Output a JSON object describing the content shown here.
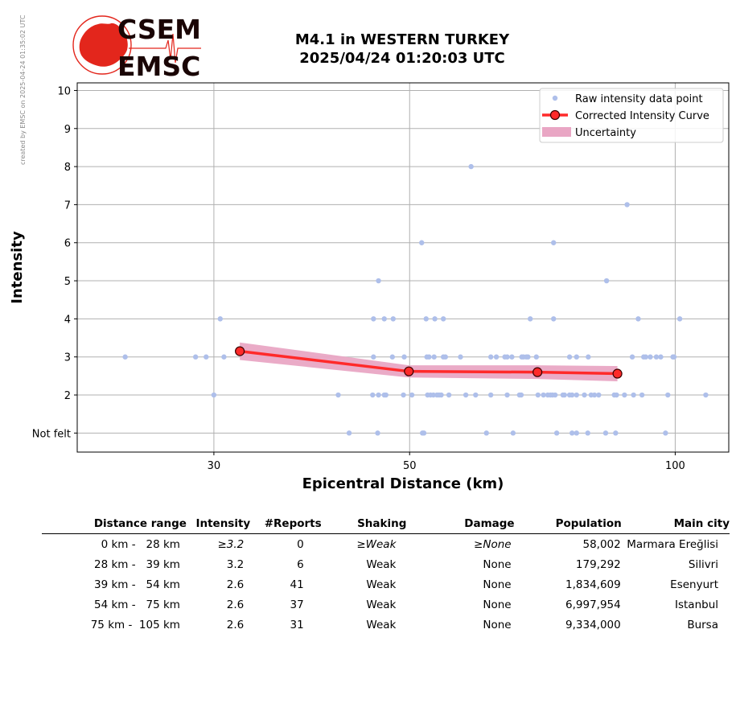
{
  "watermark": "created by EMSC on 2025-04-24 01:35:02 UTC",
  "logo": {
    "line1": "CSEM",
    "line2": "EMSC"
  },
  "title": {
    "line1": "M4.1 in WESTERN TURKEY",
    "line2": "2025/04/24 01:20:03 UTC"
  },
  "colors": {
    "raw": "#aebfea",
    "curve": "#ff2a2a",
    "marker_edge": "#3a0000",
    "uncertainty": "#e9a6c4",
    "logo_red": "#e3261c",
    "logo_text": "#1a0505"
  },
  "chart_data": {
    "type": "scatter",
    "xlabel": "Epicentral Distance (km)",
    "ylabel": "Intensity",
    "x_scale": "log",
    "xlim": [
      21,
      115
    ],
    "ylim": [
      0.5,
      10.2
    ],
    "x_ticks": [
      30,
      50,
      100
    ],
    "y_ticks": [
      {
        "value": 1,
        "label": "Not felt"
      },
      {
        "value": 2,
        "label": "2"
      },
      {
        "value": 3,
        "label": "3"
      },
      {
        "value": 4,
        "label": "4"
      },
      {
        "value": 5,
        "label": "5"
      },
      {
        "value": 6,
        "label": "6"
      },
      {
        "value": 7,
        "label": "7"
      },
      {
        "value": 8,
        "label": "8"
      },
      {
        "value": 9,
        "label": "9"
      },
      {
        "value": 10,
        "label": "10"
      }
    ],
    "grid": true,
    "legend_position": "top-right",
    "legend": [
      "Raw intensity data point",
      "Corrected Intensity Curve",
      "Uncertainty"
    ],
    "raw_points": [
      [
        23.8,
        3
      ],
      [
        28.6,
        3
      ],
      [
        29.4,
        3
      ],
      [
        30.0,
        2
      ],
      [
        30.5,
        4
      ],
      [
        30.8,
        3
      ],
      [
        41.5,
        2
      ],
      [
        42.7,
        1
      ],
      [
        45.4,
        2
      ],
      [
        45.5,
        3
      ],
      [
        45.5,
        4
      ],
      [
        46.1,
        5
      ],
      [
        46.1,
        2
      ],
      [
        46.0,
        1
      ],
      [
        46.8,
        2
      ],
      [
        47.0,
        2
      ],
      [
        46.8,
        4
      ],
      [
        47.9,
        4
      ],
      [
        47.8,
        3
      ],
      [
        49.2,
        2
      ],
      [
        49.3,
        3
      ],
      [
        50.3,
        2
      ],
      [
        51.6,
        6
      ],
      [
        51.7,
        1
      ],
      [
        51.9,
        1
      ],
      [
        52.2,
        4
      ],
      [
        52.3,
        3
      ],
      [
        52.4,
        2
      ],
      [
        52.8,
        2
      ],
      [
        52.6,
        3
      ],
      [
        53.2,
        2
      ],
      [
        53.3,
        3
      ],
      [
        53.4,
        4
      ],
      [
        53.7,
        2
      ],
      [
        54.0,
        2
      ],
      [
        54.3,
        2
      ],
      [
        54.6,
        4
      ],
      [
        54.6,
        3
      ],
      [
        54.9,
        3
      ],
      [
        55.4,
        2
      ],
      [
        57.1,
        3
      ],
      [
        57.9,
        2
      ],
      [
        58.7,
        8
      ],
      [
        59.4,
        2
      ],
      [
        61.1,
        1
      ],
      [
        61.8,
        3
      ],
      [
        61.8,
        2
      ],
      [
        62.7,
        3
      ],
      [
        64.1,
        3
      ],
      [
        64.5,
        2
      ],
      [
        64.5,
        3
      ],
      [
        65.3,
        3
      ],
      [
        65.5,
        1
      ],
      [
        66.6,
        2
      ],
      [
        66.9,
        2
      ],
      [
        67.0,
        3
      ],
      [
        67.3,
        3
      ],
      [
        67.8,
        3
      ],
      [
        68.1,
        3
      ],
      [
        68.5,
        4
      ],
      [
        69.6,
        3
      ],
      [
        69.9,
        2
      ],
      [
        70.9,
        2
      ],
      [
        71.7,
        2
      ],
      [
        72.2,
        2
      ],
      [
        72.6,
        2
      ],
      [
        72.8,
        6
      ],
      [
        72.8,
        4
      ],
      [
        73.1,
        2
      ],
      [
        73.4,
        1
      ],
      [
        74.6,
        2
      ],
      [
        74.9,
        2
      ],
      [
        75.9,
        3
      ],
      [
        75.9,
        2
      ],
      [
        76.4,
        1
      ],
      [
        76.4,
        2
      ],
      [
        77.3,
        2
      ],
      [
        77.3,
        3
      ],
      [
        77.3,
        1
      ],
      [
        78.9,
        2
      ],
      [
        79.6,
        1
      ],
      [
        79.7,
        3
      ],
      [
        80.3,
        2
      ],
      [
        81.0,
        2
      ],
      [
        81.9,
        2
      ],
      [
        83.4,
        1
      ],
      [
        83.6,
        5
      ],
      [
        85.3,
        2
      ],
      [
        85.6,
        1
      ],
      [
        85.8,
        2
      ],
      [
        87.6,
        2
      ],
      [
        88.2,
        7
      ],
      [
        89.4,
        3
      ],
      [
        89.7,
        2
      ],
      [
        90.8,
        4
      ],
      [
        91.7,
        2
      ],
      [
        92.1,
        3
      ],
      [
        92.6,
        3
      ],
      [
        93.7,
        3
      ],
      [
        95.2,
        3
      ],
      [
        96.3,
        3
      ],
      [
        97.5,
        1
      ],
      [
        98.1,
        2
      ],
      [
        99.4,
        3
      ],
      [
        99.7,
        3
      ],
      [
        101.2,
        4
      ],
      [
        108.3,
        2
      ]
    ],
    "curve": [
      [
        32.1,
        3.15
      ],
      [
        49.9,
        2.62
      ],
      [
        69.8,
        2.6
      ],
      [
        86.0,
        2.56
      ]
    ],
    "uncertainty": [
      [
        32.1,
        2.92,
        3.38
      ],
      [
        49.9,
        2.46,
        2.78
      ],
      [
        69.8,
        2.42,
        2.78
      ],
      [
        86.0,
        2.36,
        2.76
      ]
    ]
  },
  "table": {
    "headers": [
      "Distance range",
      "Intensity",
      "#Reports",
      "Shaking",
      "Damage",
      "Population",
      "Main city"
    ],
    "rows": [
      {
        "range": "0 km -   28 km",
        "intensity": "≥3.2",
        "reports": "0",
        "shaking": "≥Weak",
        "damage": "≥None",
        "population": "58,002",
        "city": "Marmara Ereğlisi",
        "italic": true
      },
      {
        "range": "28 km -   39 km",
        "intensity": "3.2",
        "reports": "6",
        "shaking": "Weak",
        "damage": "None",
        "population": "179,292",
        "city": "Silivri",
        "italic": false
      },
      {
        "range": "39 km -   54 km",
        "intensity": "2.6",
        "reports": "41",
        "shaking": "Weak",
        "damage": "None",
        "population": "1,834,609",
        "city": "Esenyurt",
        "italic": false
      },
      {
        "range": "54 km -   75 km",
        "intensity": "2.6",
        "reports": "37",
        "shaking": "Weak",
        "damage": "None",
        "population": "6,997,954",
        "city": "Istanbul",
        "italic": false
      },
      {
        "range": "75 km -  105 km",
        "intensity": "2.6",
        "reports": "31",
        "shaking": "Weak",
        "damage": "None",
        "population": "9,334,000",
        "city": "Bursa",
        "italic": false
      }
    ]
  }
}
